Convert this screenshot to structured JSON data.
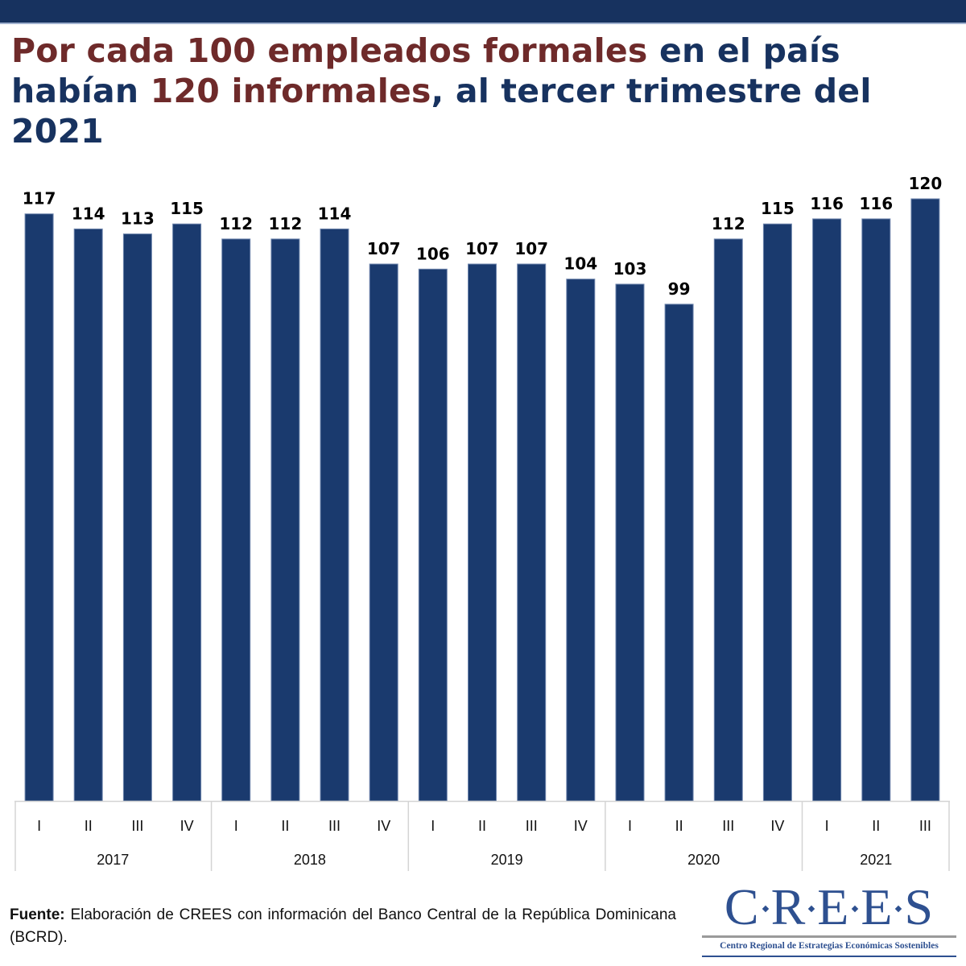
{
  "header": {
    "title_parts": [
      {
        "text": "Por cada 100 empleados formales",
        "highlight": true
      },
      {
        "text": " en el país habían ",
        "highlight": false
      },
      {
        "text": "120 informales",
        "highlight": true
      },
      {
        "text": ", al tercer trimestre del 2021",
        "highlight": false
      }
    ]
  },
  "colors": {
    "bar": "#1a3a6e",
    "title_navy": "#17325f",
    "title_maroon": "#6e2a2a",
    "top_bar": "#17325f",
    "logo": "#2e5090"
  },
  "chart_data": {
    "type": "bar",
    "title": "Por cada 100 empleados formales en el país habían 120 informales, al tercer trimestre del 2021",
    "xlabel": "",
    "ylabel": "",
    "ylim": [
      0,
      120
    ],
    "grid": false,
    "legend": "none",
    "categories": [
      "I",
      "II",
      "III",
      "IV",
      "I",
      "II",
      "III",
      "IV",
      "I",
      "II",
      "III",
      "IV",
      "I",
      "II",
      "III",
      "IV",
      "I",
      "II",
      "III"
    ],
    "groups": [
      {
        "label": "2017",
        "count": 4
      },
      {
        "label": "2018",
        "count": 4
      },
      {
        "label": "2019",
        "count": 4
      },
      {
        "label": "2020",
        "count": 4
      },
      {
        "label": "2021",
        "count": 3
      }
    ],
    "values": [
      117,
      114,
      113,
      115,
      112,
      112,
      114,
      107,
      106,
      107,
      107,
      104,
      103,
      99,
      112,
      115,
      116,
      116,
      120
    ],
    "data_labels": [
      "117",
      "114",
      "113",
      "115",
      "112",
      "112",
      "114",
      "107",
      "106",
      "107",
      "107",
      "104",
      "103",
      "99",
      "112",
      "115",
      "116",
      "116",
      "120"
    ]
  },
  "footer": {
    "source_label": "Fuente:",
    "source_text": " Elaboración de CREES con información del Banco Central de la República Dominicana (BCRD)."
  },
  "logo": {
    "letters": [
      "C",
      "R",
      "E",
      "E",
      "S"
    ],
    "subtitle": "Centro Regional de Estrategias Económicas Sostenibles"
  }
}
